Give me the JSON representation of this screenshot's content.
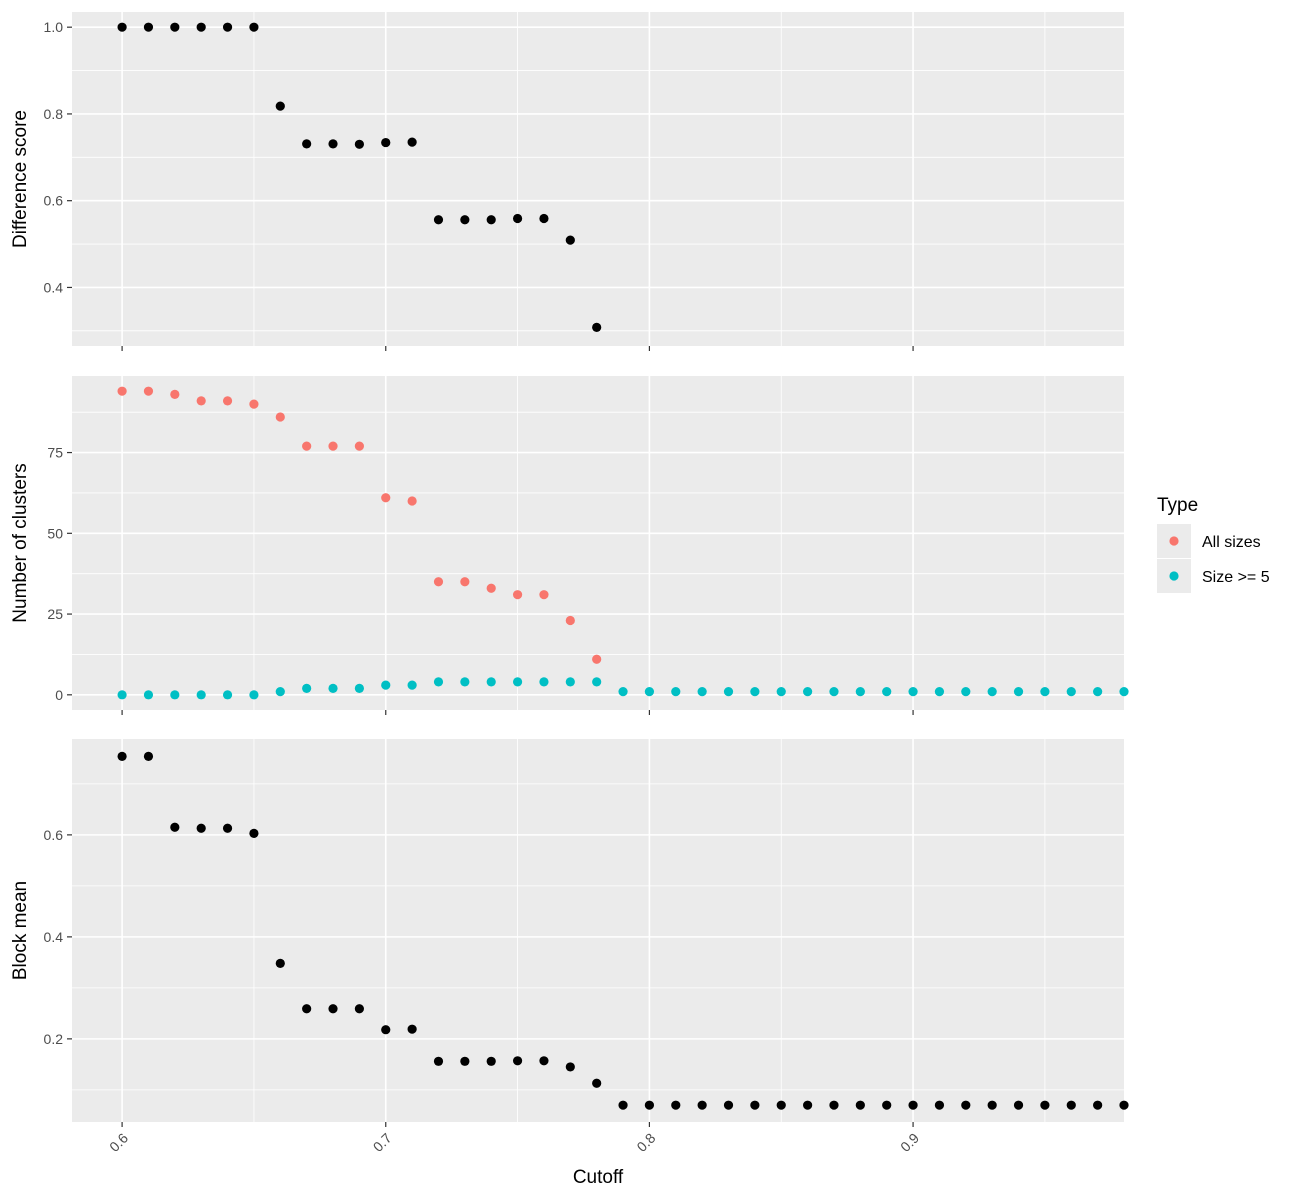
{
  "chart_data": [
    {
      "type": "scatter",
      "ylabel": "Difference score",
      "xlim": [
        0.581,
        0.98
      ],
      "ylim": [
        0.265,
        1.035
      ],
      "y_ticks": [
        0.4,
        0.6,
        0.8,
        1.0
      ],
      "y_tick_labels": [
        "0.4",
        "0.6",
        "0.8",
        "1.0"
      ],
      "y_minor": [
        0.3,
        0.5,
        0.7,
        0.9
      ],
      "grid": true,
      "series": [
        {
          "color": "#000000",
          "x": [
            0.6,
            0.61,
            0.62,
            0.63,
            0.64,
            0.65,
            0.66,
            0.67,
            0.68,
            0.69,
            0.7,
            0.71,
            0.72,
            0.73,
            0.74,
            0.75,
            0.76,
            0.77,
            0.78
          ],
          "y": [
            1.0,
            1.0,
            1.0,
            1.0,
            1.0,
            1.0,
            0.818,
            0.731,
            0.731,
            0.73,
            0.734,
            0.735,
            0.556,
            0.556,
            0.556,
            0.559,
            0.559,
            0.509,
            0.308
          ]
        }
      ]
    },
    {
      "type": "scatter",
      "ylabel": "Number of clusters",
      "xlim": [
        0.581,
        0.98
      ],
      "ylim": [
        -4.7,
        98.7
      ],
      "y_ticks": [
        0,
        25,
        50,
        75
      ],
      "y_tick_labels": [
        "0",
        "25",
        "50",
        "75"
      ],
      "y_minor": [
        12.5,
        37.5,
        62.5,
        87.5
      ],
      "grid": true,
      "legend": {
        "title": "Type",
        "placement": "right",
        "entries": [
          {
            "label": "All sizes",
            "color": "#F8766D"
          },
          {
            "label": "Size >= 5",
            "color": "#00BFC4"
          }
        ]
      },
      "series": [
        {
          "name": "All sizes",
          "color": "#F8766D",
          "x": [
            0.6,
            0.61,
            0.62,
            0.63,
            0.64,
            0.65,
            0.66,
            0.67,
            0.68,
            0.69,
            0.7,
            0.71,
            0.72,
            0.73,
            0.74,
            0.75,
            0.76,
            0.77,
            0.78
          ],
          "y": [
            94,
            94,
            93,
            91,
            91,
            90,
            86,
            77,
            77,
            77,
            61,
            60,
            35,
            35,
            33,
            31,
            31,
            23,
            11
          ]
        },
        {
          "name": "Size >= 5",
          "color": "#00BFC4",
          "x": [
            0.6,
            0.61,
            0.62,
            0.63,
            0.64,
            0.65,
            0.66,
            0.67,
            0.68,
            0.69,
            0.7,
            0.71,
            0.72,
            0.73,
            0.74,
            0.75,
            0.76,
            0.77,
            0.78,
            0.79,
            0.8,
            0.81,
            0.82,
            0.83,
            0.84,
            0.85,
            0.86,
            0.87,
            0.88,
            0.89,
            0.9,
            0.91,
            0.92,
            0.93,
            0.94,
            0.95,
            0.96,
            0.97,
            0.98
          ],
          "y": [
            0,
            0,
            0,
            0,
            0,
            0,
            1,
            2,
            2,
            2,
            3,
            3,
            4,
            4,
            4,
            4,
            4,
            4,
            4,
            1,
            1,
            1,
            1,
            1,
            1,
            1,
            1,
            1,
            1,
            1,
            1,
            1,
            1,
            1,
            1,
            1,
            1,
            1,
            1
          ]
        }
      ]
    },
    {
      "type": "scatter",
      "ylabel": "Block mean",
      "xlabel": "Cutoff",
      "xlim": [
        0.581,
        0.98
      ],
      "ylim": [
        0.037,
        0.788
      ],
      "x_ticks": [
        0.6,
        0.7,
        0.8,
        0.9
      ],
      "x_tick_labels": [
        "0.6",
        "0.7",
        "0.8",
        "0.9"
      ],
      "x_minor": [
        0.65,
        0.75,
        0.85,
        0.95
      ],
      "y_ticks": [
        0.2,
        0.4,
        0.6
      ],
      "y_tick_labels": [
        "0.2",
        "0.4",
        "0.6"
      ],
      "y_minor": [
        0.1,
        0.3,
        0.5,
        0.7
      ],
      "grid": true,
      "series": [
        {
          "color": "#000000",
          "x": [
            0.6,
            0.61,
            0.62,
            0.63,
            0.64,
            0.65,
            0.66,
            0.67,
            0.68,
            0.69,
            0.7,
            0.71,
            0.72,
            0.73,
            0.74,
            0.75,
            0.76,
            0.77,
            0.78,
            0.79,
            0.8,
            0.81,
            0.82,
            0.83,
            0.84,
            0.85,
            0.86,
            0.87,
            0.88,
            0.89,
            0.9,
            0.91,
            0.92,
            0.93,
            0.94,
            0.95,
            0.96,
            0.97,
            0.98
          ],
          "y": [
            0.754,
            0.754,
            0.615,
            0.613,
            0.613,
            0.603,
            0.348,
            0.259,
            0.259,
            0.259,
            0.218,
            0.219,
            0.156,
            0.156,
            0.156,
            0.157,
            0.157,
            0.145,
            0.113,
            0.07,
            0.07,
            0.07,
            0.07,
            0.07,
            0.07,
            0.07,
            0.07,
            0.07,
            0.07,
            0.07,
            0.07,
            0.07,
            0.07,
            0.07,
            0.07,
            0.07,
            0.07,
            0.07,
            0.07
          ]
        }
      ]
    }
  ]
}
